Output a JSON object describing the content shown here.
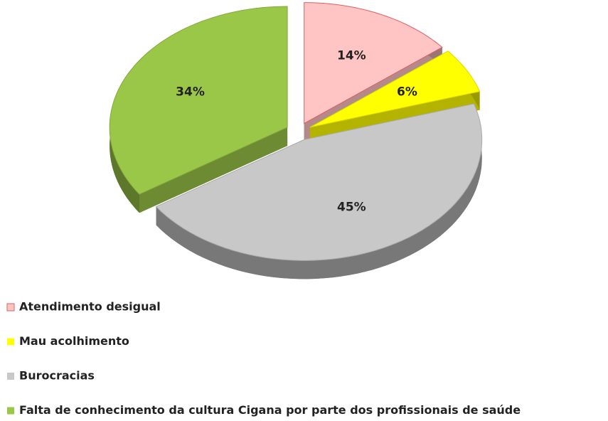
{
  "chart_data": {
    "type": "pie",
    "categories": [
      "Atendimento desigual",
      "Mau acolhimento",
      "Burocracias",
      "Falta de conhecimento da cultura Cigana por parte dos profissionais de saúde"
    ],
    "values": [
      14,
      6,
      45,
      34
    ],
    "value_labels": [
      "14%",
      "6%",
      "45%",
      "34%"
    ],
    "colors": [
      "#ffc4c4",
      "#ffff00",
      "#c8c8c8",
      "#9bc748"
    ],
    "legend": "bottom-left"
  }
}
